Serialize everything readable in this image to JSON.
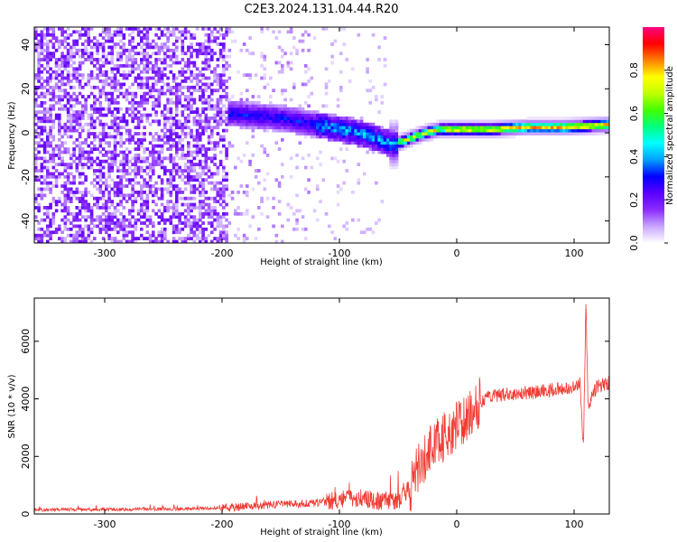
{
  "title": "C2E3.2024.131.04.44.R20",
  "chart_data": [
    {
      "type": "heatmap",
      "xlabel": "Height of straight line (km)",
      "ylabel": "Frequency (Hz)",
      "xlim": [
        -360,
        130
      ],
      "ylim": [
        -50,
        48
      ],
      "xticks": [
        -300,
        -200,
        -100,
        0,
        100
      ],
      "yticks": [
        -40,
        -20,
        0,
        20,
        40
      ],
      "colorbar": {
        "label": "Normalized spectral amplitude",
        "range": [
          0,
          1
        ],
        "ticks": [
          "0.0",
          "0.2",
          "0.4",
          "0.6",
          "0.8"
        ],
        "colors": [
          "#ffffff",
          "#c8a6ff",
          "#8a2bff",
          "#5a00ff",
          "#0000ff",
          "#00a0ff",
          "#00ffff",
          "#00ff80",
          "#40ff00",
          "#c0ff00",
          "#ffff00",
          "#ff8000",
          "#ff0000",
          "#ff0080"
        ]
      },
      "ridge_line": [
        {
          "x": -190,
          "y": 8
        },
        {
          "x": -170,
          "y": 7
        },
        {
          "x": -150,
          "y": 6
        },
        {
          "x": -130,
          "y": 4
        },
        {
          "x": -110,
          "y": 2
        },
        {
          "x": -90,
          "y": 0
        },
        {
          "x": -70,
          "y": -3
        },
        {
          "x": -55,
          "y": -6
        },
        {
          "x": -45,
          "y": -4
        },
        {
          "x": -30,
          "y": -1
        },
        {
          "x": -15,
          "y": 1
        },
        {
          "x": 0,
          "y": 1
        },
        {
          "x": 30,
          "y": 1
        },
        {
          "x": 60,
          "y": 2
        },
        {
          "x": 90,
          "y": 2
        },
        {
          "x": 130,
          "y": 3
        }
      ]
    },
    {
      "type": "line",
      "xlabel": "Height of straight line (km)",
      "ylabel": "SNR (10 * v/v)",
      "xlim": [
        -360,
        130
      ],
      "ylim": [
        0,
        7500
      ],
      "xticks": [
        -300,
        -200,
        -100,
        0,
        100
      ],
      "yticks": [
        0,
        2000,
        4000,
        6000
      ],
      "color": "#f03a33",
      "series_envelope": [
        {
          "x": -360,
          "y": 150
        },
        {
          "x": -300,
          "y": 160
        },
        {
          "x": -250,
          "y": 170
        },
        {
          "x": -200,
          "y": 200
        },
        {
          "x": -180,
          "y": 260
        },
        {
          "x": -160,
          "y": 320
        },
        {
          "x": -140,
          "y": 350
        },
        {
          "x": -120,
          "y": 380
        },
        {
          "x": -100,
          "y": 500
        },
        {
          "x": -80,
          "y": 550
        },
        {
          "x": -60,
          "y": 400
        },
        {
          "x": -50,
          "y": 450
        },
        {
          "x": -40,
          "y": 900
        },
        {
          "x": -30,
          "y": 1800
        },
        {
          "x": -20,
          "y": 2300
        },
        {
          "x": -10,
          "y": 2700
        },
        {
          "x": 0,
          "y": 3000
        },
        {
          "x": 10,
          "y": 3500
        },
        {
          "x": 20,
          "y": 3900
        },
        {
          "x": 30,
          "y": 4100
        },
        {
          "x": 50,
          "y": 4200
        },
        {
          "x": 70,
          "y": 4250
        },
        {
          "x": 90,
          "y": 4350
        },
        {
          "x": 100,
          "y": 4400
        },
        {
          "x": 105,
          "y": 4500
        },
        {
          "x": 108,
          "y": 2300
        },
        {
          "x": 110,
          "y": 7400
        },
        {
          "x": 112,
          "y": 3800
        },
        {
          "x": 120,
          "y": 4450
        },
        {
          "x": 130,
          "y": 4550
        }
      ]
    }
  ]
}
